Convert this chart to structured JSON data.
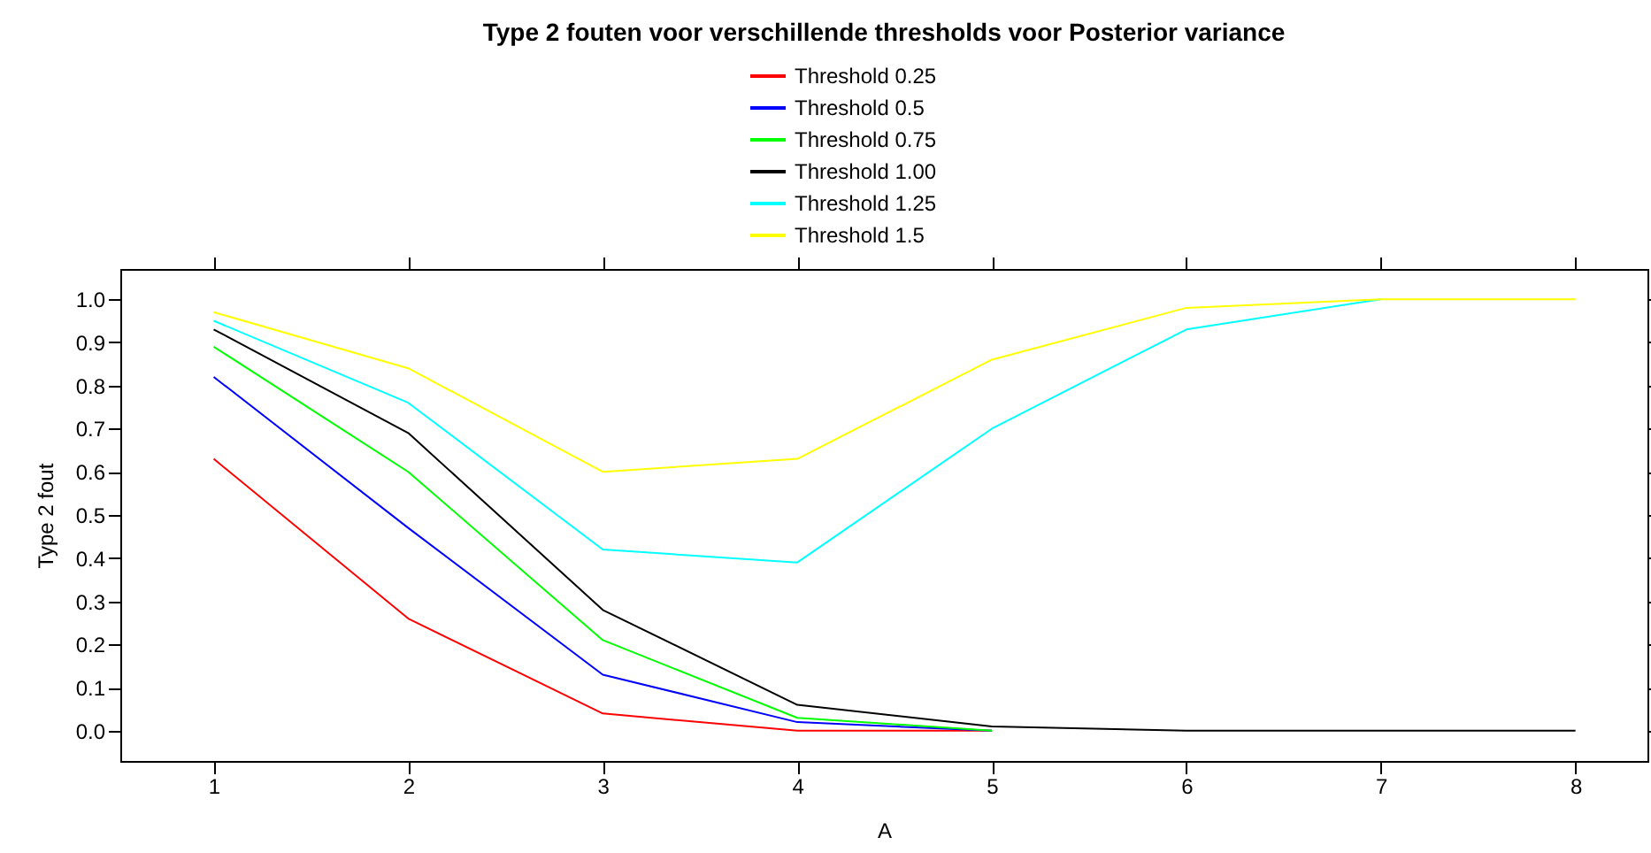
{
  "chart_data": {
    "type": "line",
    "title": "Type 2 fouten voor verschillende thresholds voor Posterior variance",
    "xlabel": "A",
    "ylabel": "Type 2 fout",
    "x": [
      1,
      2,
      3,
      4,
      5,
      6,
      7,
      8
    ],
    "series": [
      {
        "name": "Threshold 0.25",
        "color": "#ff0000",
        "values": [
          0.63,
          0.26,
          0.04,
          0.0,
          0.0,
          null,
          null,
          null
        ]
      },
      {
        "name": "Threshold 0.5",
        "color": "#0000ff",
        "values": [
          0.82,
          0.47,
          0.13,
          0.02,
          0.0,
          null,
          null,
          null
        ]
      },
      {
        "name": "Threshold 0.75",
        "color": "#00ff00",
        "values": [
          0.89,
          0.6,
          0.21,
          0.03,
          0.0,
          null,
          null,
          null
        ]
      },
      {
        "name": "Threshold 1.00",
        "color": "#000000",
        "values": [
          0.93,
          0.69,
          0.28,
          0.06,
          0.01,
          0.0,
          0.0,
          0.0
        ]
      },
      {
        "name": "Threshold 1.25",
        "color": "#00ffff",
        "values": [
          0.95,
          0.76,
          0.42,
          0.39,
          0.7,
          0.93,
          1.0,
          null
        ]
      },
      {
        "name": "Threshold 1.5",
        "color": "#ffff00",
        "values": [
          0.97,
          0.84,
          0.6,
          0.63,
          0.86,
          0.98,
          1.0,
          1.0
        ]
      }
    ],
    "xlim": [
      0.52,
      8.37
    ],
    "ylim": [
      -0.07,
      1.07
    ],
    "xticks": [
      1,
      2,
      3,
      4,
      5,
      6,
      7,
      8
    ],
    "yticks": [
      {
        "value": 0,
        "label": "0.0"
      },
      0.1,
      0.2,
      0.3,
      0.4,
      0.5,
      0.6,
      0.7,
      0.8,
      0.9,
      {
        "value": 1,
        "label": "1.0"
      }
    ],
    "legend": "top",
    "grid": false,
    "marker": "none",
    "line_style": "solid"
  }
}
